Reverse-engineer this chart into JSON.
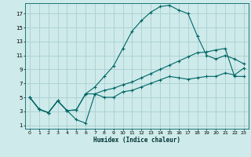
{
  "xlabel": "Humidex (Indice chaleur)",
  "bg_color": "#ceeaea",
  "grid_color": "#aacfcf",
  "line_color": "#006666",
  "xlim": [
    -0.5,
    23.5
  ],
  "ylim": [
    0.5,
    18.5
  ],
  "xticks": [
    0,
    1,
    2,
    3,
    4,
    5,
    6,
    7,
    8,
    9,
    10,
    11,
    12,
    13,
    14,
    15,
    16,
    17,
    18,
    19,
    20,
    21,
    22,
    23
  ],
  "yticks": [
    1,
    3,
    5,
    7,
    9,
    11,
    13,
    15,
    17
  ],
  "line1_x": [
    0,
    1,
    2,
    3,
    4,
    5,
    6,
    7,
    8,
    9,
    10,
    11,
    12,
    13,
    14,
    15,
    16,
    17,
    18,
    19,
    20,
    21,
    22,
    23
  ],
  "line1_y": [
    5.0,
    3.3,
    2.8,
    4.5,
    3.1,
    3.2,
    5.5,
    5.5,
    6.0,
    6.3,
    6.8,
    7.2,
    7.8,
    8.4,
    9.0,
    9.6,
    10.2,
    10.8,
    11.4,
    11.5,
    11.8,
    12.0,
    8.0,
    8.0
  ],
  "line2_x": [
    0,
    1,
    2,
    3,
    4,
    5,
    6,
    7,
    8,
    9,
    10,
    11,
    12,
    13,
    14,
    15,
    16,
    17,
    18,
    19,
    20,
    21,
    22,
    23
  ],
  "line2_y": [
    5.0,
    3.3,
    2.8,
    4.5,
    3.1,
    3.2,
    5.5,
    6.5,
    8.0,
    9.5,
    12.0,
    14.5,
    16.0,
    17.2,
    18.0,
    18.2,
    17.5,
    17.0,
    13.8,
    11.0,
    10.5,
    11.0,
    10.5,
    9.8
  ],
  "line3_x": [
    0,
    1,
    2,
    3,
    4,
    5,
    6,
    7,
    8,
    9,
    10,
    11,
    12,
    13,
    14,
    15,
    16,
    17,
    18,
    19,
    20,
    21,
    22,
    23
  ],
  "line3_y": [
    5.0,
    3.3,
    2.8,
    4.5,
    3.1,
    1.8,
    1.3,
    5.5,
    5.0,
    5.0,
    5.8,
    6.0,
    6.5,
    7.0,
    7.5,
    8.0,
    7.8,
    7.6,
    7.8,
    8.0,
    8.0,
    8.5,
    8.2,
    9.2
  ]
}
